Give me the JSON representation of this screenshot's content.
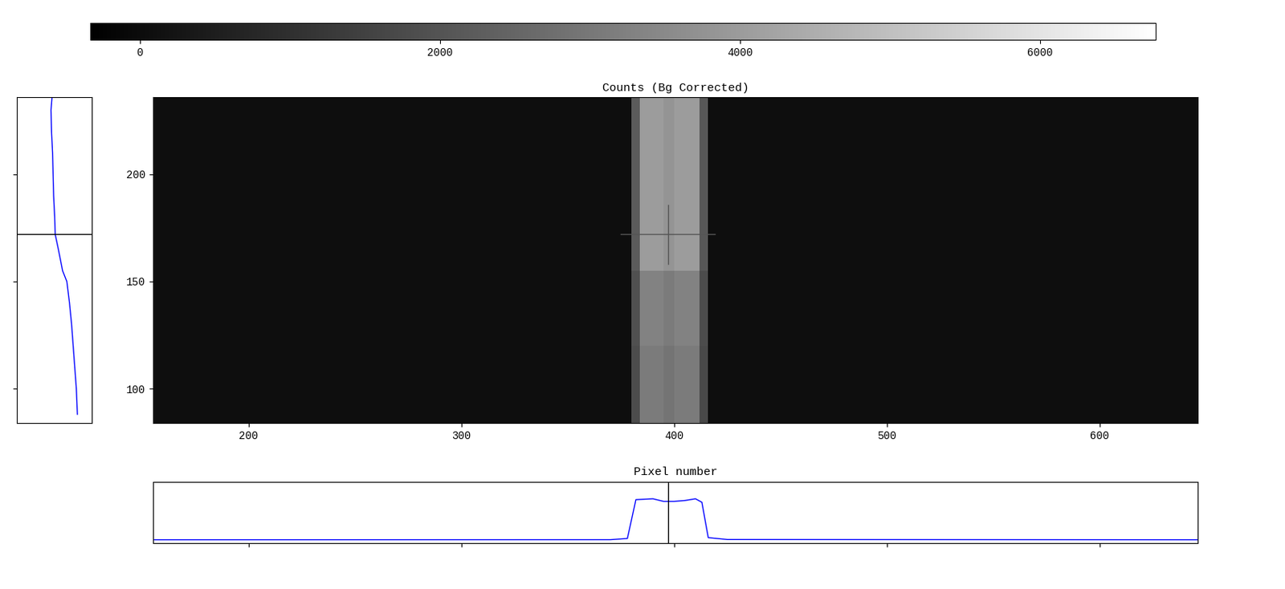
{
  "chart_data": {
    "type": "heatmap",
    "title": "Counts (Bg Corrected)",
    "x_label": "Pixel number",
    "xlim": [
      155,
      646
    ],
    "xticks": [
      200,
      300,
      400,
      500,
      600
    ],
    "ylim": [
      84,
      236
    ],
    "yticks": [
      100,
      150,
      200
    ],
    "x_edges": [
      155,
      380,
      384,
      395,
      400,
      412,
      416,
      646
    ],
    "y_edges": [
      84,
      120,
      155,
      236
    ],
    "cells": [
      [
        60,
        1800,
        3100,
        2900,
        3100,
        1700,
        60
      ],
      [
        60,
        1900,
        3300,
        3100,
        3300,
        1800,
        60
      ],
      [
        70,
        2200,
        4000,
        3800,
        4000,
        2100,
        70
      ]
    ],
    "colorbar_range": [
      -330,
      6770
    ],
    "colorbar_ticks": [
      0,
      2000,
      4000,
      6000
    ],
    "crosshair": [
      397,
      172
    ],
    "color": "#0000ff",
    "row_profile": {
      "x": [
        155,
        370,
        378,
        382,
        390,
        395,
        400,
        405,
        410,
        413,
        416,
        425,
        646
      ],
      "values": [
        50,
        60,
        200,
        4700,
        4800,
        4500,
        4500,
        4600,
        4800,
        4400,
        300,
        80,
        50
      ]
    },
    "column_profile": {
      "y": [
        88,
        100,
        110,
        120,
        130,
        140,
        150,
        155,
        165,
        172,
        180,
        190,
        200,
        210,
        220,
        230,
        236
      ],
      "values": [
        5400,
        5300,
        5150,
        5000,
        4850,
        4650,
        4400,
        4000,
        3600,
        3300,
        3250,
        3150,
        3100,
        3050,
        2950,
        2900,
        3000
      ]
    }
  }
}
